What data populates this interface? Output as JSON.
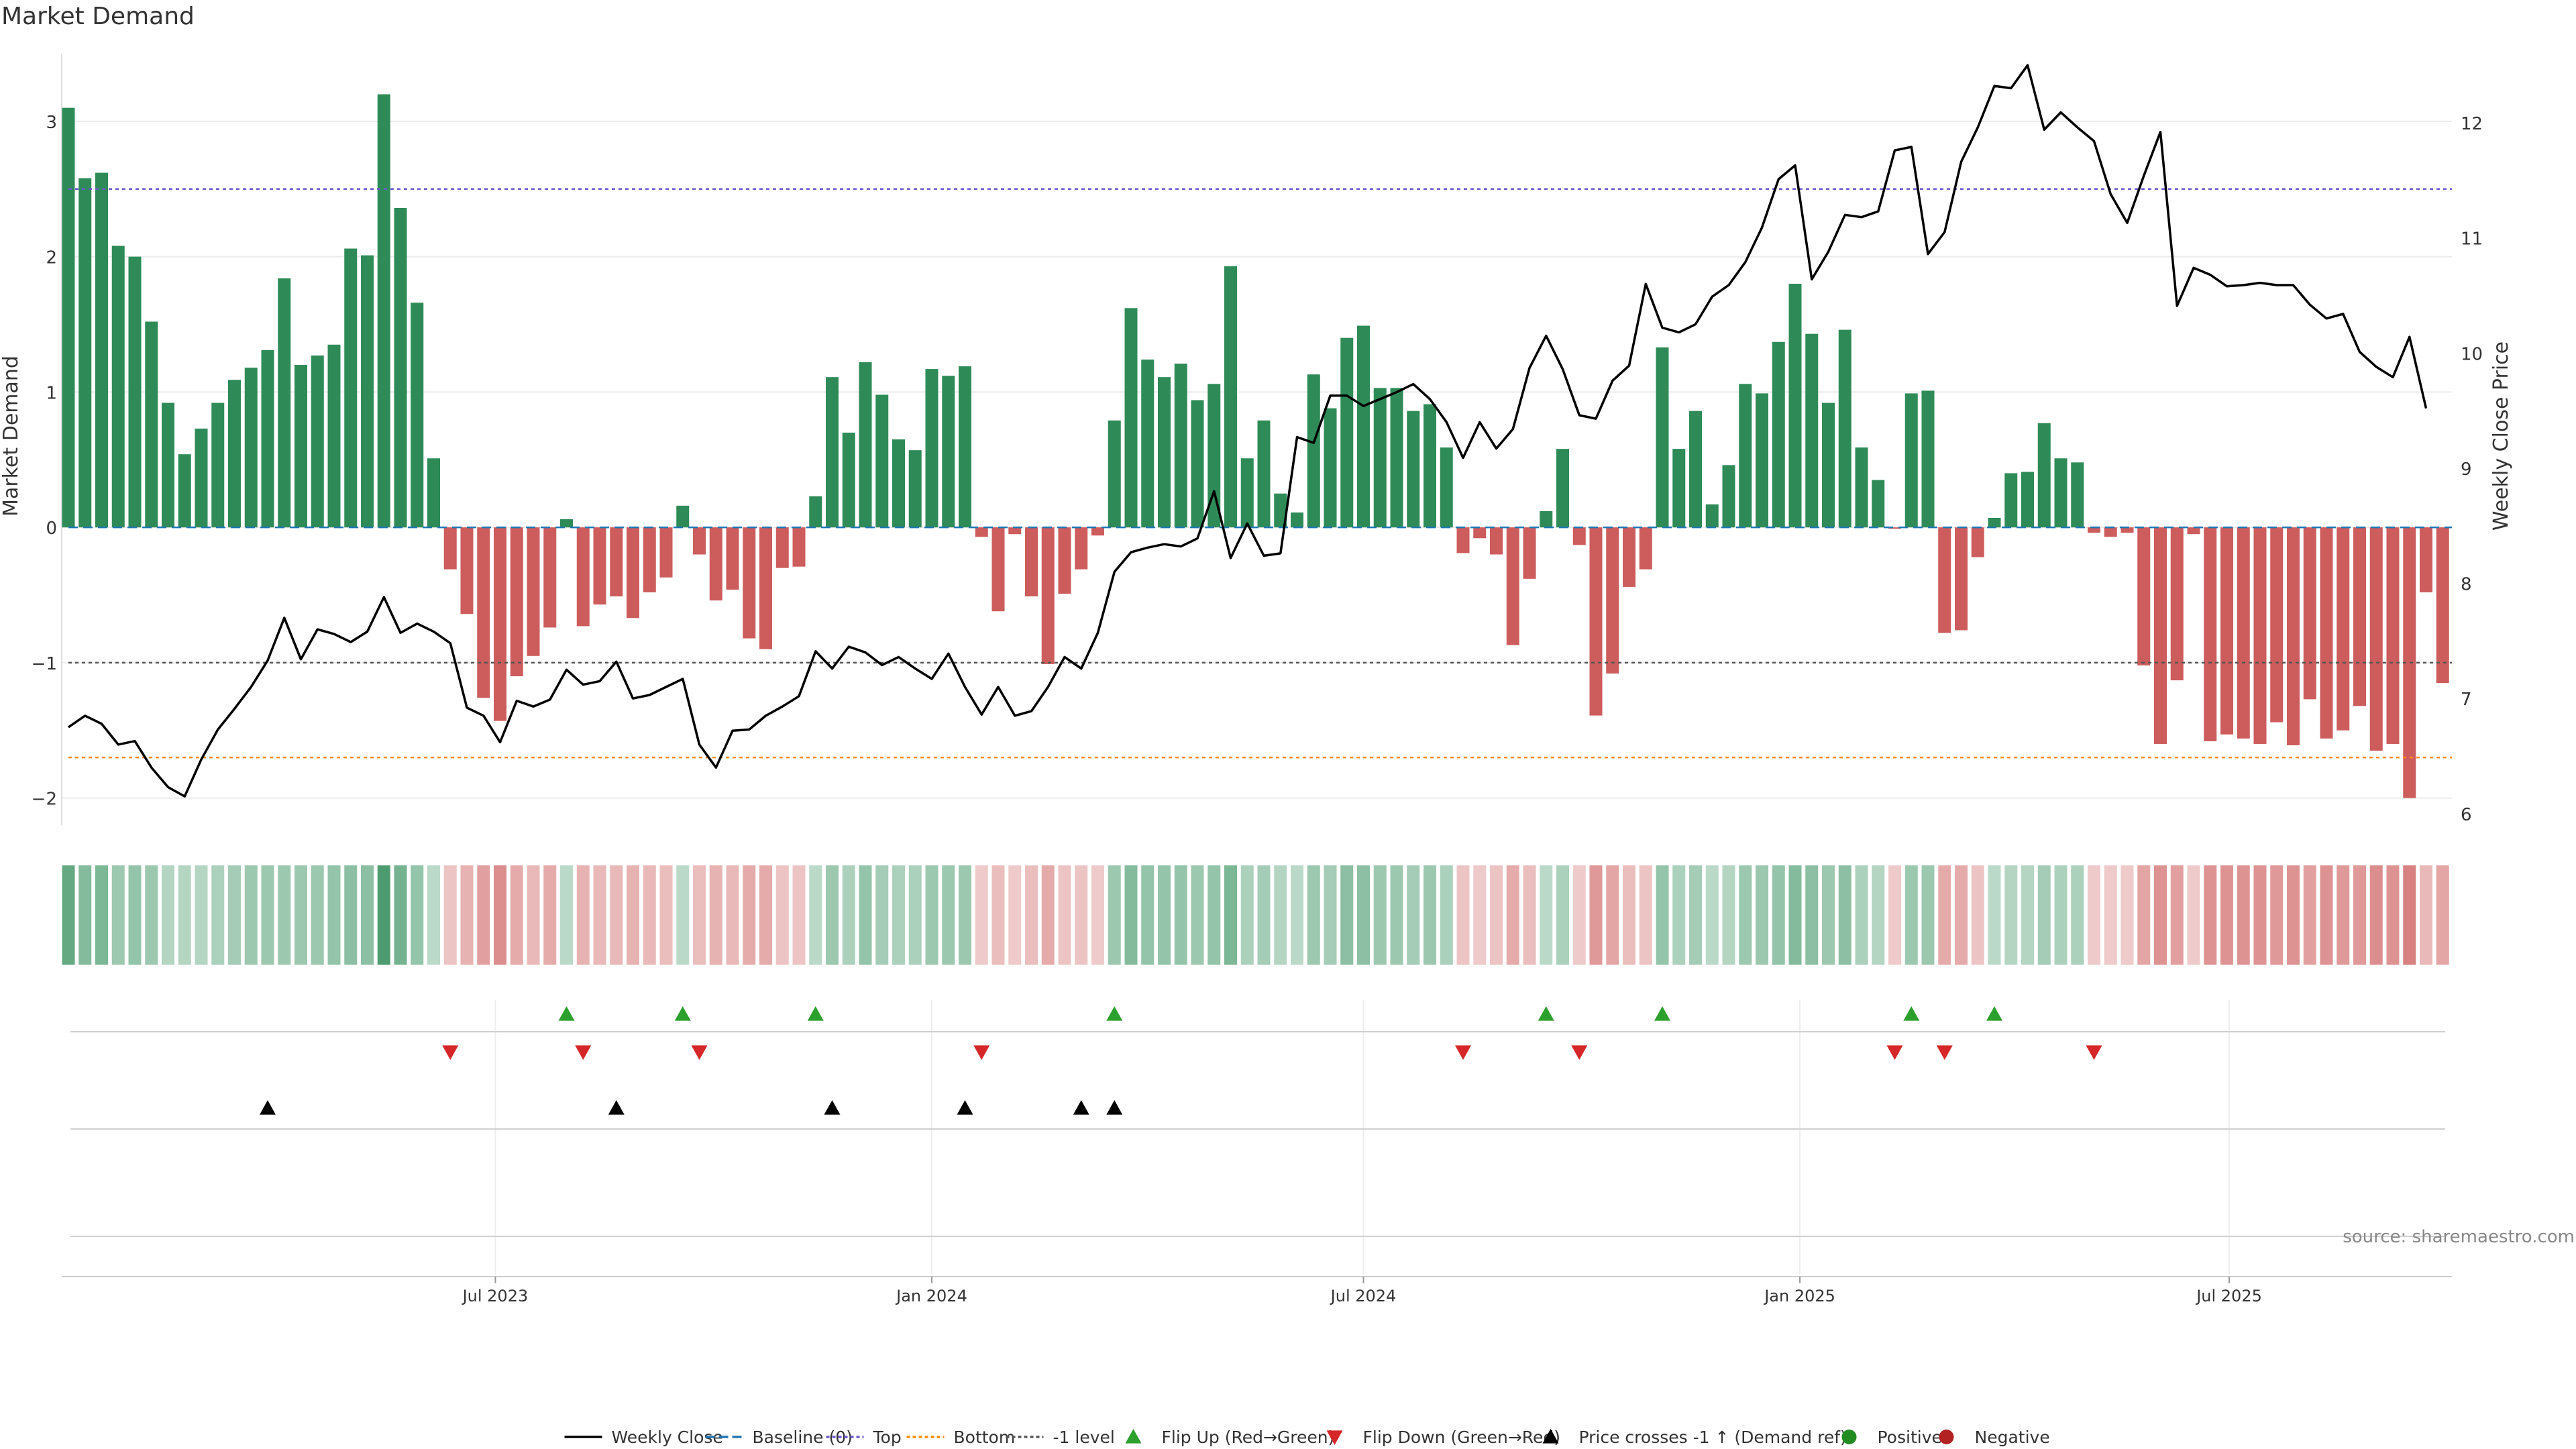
{
  "title": "Market Demand",
  "source_note": "source: sharemaestro.com",
  "y_left_label": "Market Demand",
  "y_right_label": "Weekly Close Price",
  "colors": {
    "positive_bar": "#2e8b57",
    "negative_bar": "#cd5c5c",
    "price_line": "#000000",
    "top_line": "#6a5acd",
    "bottom_line": "#ff8c00",
    "minus1_line": "#555555",
    "baseline": "#1f77b4",
    "flip_up": "#2ca02c",
    "flip_down": "#d62728",
    "cross_marker": "#000000",
    "positive_dot": "#228b22",
    "negative_dot": "#b22222",
    "grid": "#ebebeb"
  },
  "legend": [
    {
      "label": "Weekly Close",
      "kind": "line-solid",
      "color": "#000000"
    },
    {
      "label": "Baseline (0)",
      "kind": "line-dash",
      "color": "#1f77b4"
    },
    {
      "label": "Top",
      "kind": "line-dot",
      "color": "#6a5acd"
    },
    {
      "label": "Bottom",
      "kind": "line-dot",
      "color": "#ff8c00"
    },
    {
      "label": "-1 level",
      "kind": "line-dot",
      "color": "#555555"
    },
    {
      "label": "Flip Up (Red→Green)",
      "kind": "tri-up",
      "color": "#2ca02c"
    },
    {
      "label": "Flip Down (Green→Red)",
      "kind": "tri-down",
      "color": "#d62728"
    },
    {
      "label": "Price crosses -1 ↑ (Demand ref)",
      "kind": "tri-up",
      "color": "#000000"
    },
    {
      "label": "Positive",
      "kind": "dot",
      "color": "#228b22"
    },
    {
      "label": "Negative",
      "kind": "dot",
      "color": "#b22222"
    }
  ],
  "chart_data": {
    "type": "bar",
    "x_start": "2023-01-02",
    "x_interval": "weekly",
    "x_ticks": [
      "Jul 2023",
      "Jan 2024",
      "Jul 2024",
      "Jan 2025",
      "Jul 2025"
    ],
    "x_tick_dates": [
      "2023-07-01",
      "2024-01-01",
      "2024-07-01",
      "2025-01-01",
      "2025-07-01"
    ],
    "ylim_left": [
      -2.2,
      3.5
    ],
    "yticks_left": [
      -2,
      -1,
      0,
      1,
      2,
      3
    ],
    "ylim_right": [
      5.9,
      12.6
    ],
    "yticks_right": [
      6,
      7,
      8,
      9,
      10,
      11,
      12
    ],
    "levels": {
      "top": 2.5,
      "bottom": -1.7,
      "minus1": -1,
      "baseline": 0
    },
    "demand": [
      3.1,
      2.58,
      2.62,
      2.08,
      2.0,
      1.52,
      0.92,
      0.54,
      0.73,
      0.92,
      1.09,
      1.18,
      1.31,
      1.84,
      1.2,
      1.27,
      1.35,
      2.06,
      2.01,
      3.2,
      2.36,
      1.66,
      0.51,
      -0.31,
      -0.64,
      -1.26,
      -1.43,
      -1.1,
      -0.95,
      -0.74,
      0.06,
      -0.73,
      -0.57,
      -0.51,
      -0.67,
      -0.48,
      -0.37,
      0.16,
      -0.2,
      -0.54,
      -0.46,
      -0.82,
      -0.9,
      -0.3,
      -0.29,
      0.23,
      1.11,
      0.7,
      1.22,
      0.98,
      0.65,
      0.57,
      1.17,
      1.12,
      1.19,
      -0.07,
      -0.62,
      -0.05,
      -0.51,
      -1.01,
      -0.49,
      -0.31,
      -0.06,
      0.79,
      1.62,
      1.24,
      1.11,
      1.21,
      0.94,
      1.06,
      1.93,
      0.51,
      0.79,
      0.25,
      0.11,
      1.13,
      0.88,
      1.4,
      1.49,
      1.03,
      1.03,
      0.86,
      0.91,
      0.59,
      -0.19,
      -0.08,
      -0.2,
      -0.87,
      -0.38,
      0.12,
      0.58,
      -0.13,
      -1.39,
      -1.08,
      -0.44,
      -0.31,
      1.33,
      0.58,
      0.86,
      0.17,
      0.46,
      1.06,
      0.99,
      1.37,
      1.8,
      1.43,
      0.92,
      1.46,
      0.59,
      0.35,
      -0.01,
      0.99,
      1.01,
      -0.78,
      -0.76,
      -0.22,
      0.07,
      0.4,
      0.41,
      0.77,
      0.51,
      0.48,
      -0.04,
      -0.07,
      -0.04,
      -1.02,
      -1.6,
      -1.13,
      -0.05,
      -1.58,
      -1.53,
      -1.56,
      -1.6,
      -1.44,
      -1.61,
      -1.27,
      -1.56,
      -1.5,
      -1.32,
      -1.65,
      -1.6,
      -2.0,
      -0.48,
      -1.15
    ],
    "price": [
      6.75,
      6.85,
      6.78,
      6.6,
      6.63,
      6.4,
      6.23,
      6.15,
      6.47,
      6.73,
      6.91,
      7.1,
      7.33,
      7.7,
      7.34,
      7.6,
      7.56,
      7.49,
      7.58,
      7.88,
      7.57,
      7.65,
      7.58,
      7.48,
      6.92,
      6.85,
      6.62,
      6.98,
      6.93,
      6.99,
      7.25,
      7.12,
      7.15,
      7.32,
      7.0,
      7.03,
      7.1,
      7.17,
      6.6,
      6.4,
      6.72,
      6.73,
      6.85,
      6.93,
      7.02,
      7.41,
      7.26,
      7.45,
      7.4,
      7.29,
      7.36,
      7.26,
      7.17,
      7.39,
      7.1,
      6.86,
      7.1,
      6.85,
      6.89,
      7.1,
      7.36,
      7.26,
      7.57,
      8.1,
      8.27,
      8.31,
      8.34,
      8.32,
      8.39,
      8.8,
      8.22,
      8.52,
      8.24,
      8.26,
      9.27,
      9.22,
      9.63,
      9.63,
      9.54,
      9.6,
      9.66,
      9.73,
      9.6,
      9.4,
      9.09,
      9.4,
      9.17,
      9.34,
      9.87,
      10.15,
      9.86,
      9.46,
      9.43,
      9.76,
      9.89,
      10.6,
      10.22,
      10.18,
      10.25,
      10.49,
      10.59,
      10.79,
      11.09,
      11.51,
      11.63,
      10.64,
      10.88,
      11.2,
      11.18,
      11.23,
      11.76,
      11.79,
      10.86,
      11.05,
      11.66,
      11.96,
      12.32,
      12.3,
      12.5,
      11.94,
      12.09,
      11.96,
      11.84,
      11.38,
      11.13,
      11.54,
      11.92,
      10.41,
      10.74,
      10.68,
      10.58,
      10.59,
      10.61,
      10.59,
      10.59,
      10.42,
      10.3,
      10.34,
      10.01,
      9.88,
      9.79,
      10.14,
      9.52
    ],
    "ribbon_intensity": [
      0.65,
      0.45,
      0.5,
      0.3,
      0.35,
      0.3,
      0.15,
      0.15,
      0.15,
      0.2,
      0.25,
      0.3,
      0.3,
      0.3,
      0.3,
      0.3,
      0.35,
      0.4,
      0.4,
      0.8,
      0.55,
      0.35,
      0.1,
      0.15,
      0.3,
      0.45,
      0.6,
      0.35,
      0.25,
      0.35,
      0.1,
      0.3,
      0.25,
      0.25,
      0.3,
      0.25,
      0.2,
      0.1,
      0.2,
      0.3,
      0.25,
      0.35,
      0.35,
      0.15,
      0.15,
      0.1,
      0.3,
      0.2,
      0.35,
      0.25,
      0.2,
      0.2,
      0.3,
      0.3,
      0.3,
      0.1,
      0.2,
      0.1,
      0.2,
      0.35,
      0.15,
      0.15,
      0.1,
      0.3,
      0.45,
      0.35,
      0.35,
      0.35,
      0.3,
      0.35,
      0.5,
      0.2,
      0.25,
      0.15,
      0.1,
      0.3,
      0.25,
      0.4,
      0.4,
      0.3,
      0.3,
      0.25,
      0.3,
      0.2,
      0.15,
      0.1,
      0.15,
      0.35,
      0.2,
      0.1,
      0.2,
      0.1,
      0.5,
      0.4,
      0.2,
      0.15,
      0.35,
      0.2,
      0.25,
      0.1,
      0.15,
      0.3,
      0.3,
      0.35,
      0.45,
      0.4,
      0.3,
      0.4,
      0.2,
      0.15,
      0.1,
      0.3,
      0.3,
      0.35,
      0.35,
      0.15,
      0.1,
      0.15,
      0.15,
      0.25,
      0.2,
      0.2,
      0.1,
      0.1,
      0.1,
      0.4,
      0.55,
      0.45,
      0.1,
      0.55,
      0.55,
      0.55,
      0.55,
      0.5,
      0.55,
      0.45,
      0.55,
      0.5,
      0.5,
      0.6,
      0.55,
      0.7,
      0.25,
      0.4
    ],
    "flip_up_weeks": [
      30,
      37,
      45,
      63,
      89,
      96,
      111,
      116
    ],
    "flip_down_weeks": [
      23,
      31,
      38,
      55,
      84,
      91,
      110,
      113,
      122
    ],
    "price_cross_weeks": [
      12,
      33,
      46,
      54,
      61,
      63
    ]
  }
}
